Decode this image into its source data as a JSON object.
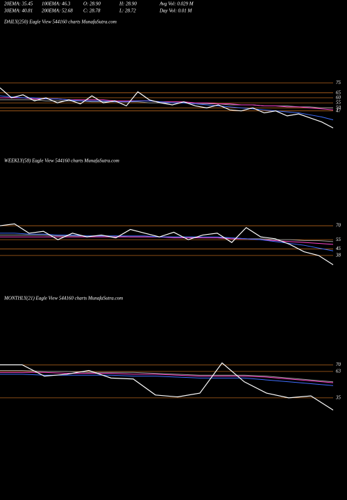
{
  "header": {
    "row1": [
      "20EMA: 35.45",
      "100EMA: 46.3",
      "O: 28.90",
      "H: 28.90",
      "Avg Vol: 0.029 M"
    ],
    "row2": [
      "30EMA: 40.81",
      "200EMA: 52.68",
      "C: 28.78",
      "L: 28.72",
      "Day Vol: 0.01 M"
    ]
  },
  "chart_data": [
    {
      "type": "line",
      "title": "DAILY(250) Eagle   View  544160  charts MunafaSutra.com",
      "ylim": [
        26,
        80
      ],
      "yticks": [
        75,
        65,
        60,
        55,
        50,
        47
      ],
      "series": [
        {
          "color": "#9a9a9a",
          "values": [
            58,
            58,
            58,
            58,
            57,
            57,
            57,
            57,
            56,
            56,
            56,
            56,
            56,
            55,
            55,
            55,
            55,
            54,
            54,
            54,
            53,
            53,
            53,
            52,
            52,
            52,
            51,
            51,
            50,
            50
          ]
        },
        {
          "color": "#ff44cc",
          "values": [
            60,
            60,
            60,
            59,
            59,
            59,
            58,
            58,
            58,
            58,
            57,
            57,
            57,
            57,
            56,
            56,
            56,
            55,
            55,
            54,
            54,
            53,
            53,
            52,
            52,
            51,
            51,
            50,
            49,
            48
          ]
        },
        {
          "color": "#3f6fff",
          "values": [
            62,
            61,
            60,
            60,
            59,
            59,
            58,
            57,
            57,
            57,
            56,
            56,
            57,
            57,
            56,
            55,
            55,
            54,
            53,
            52,
            51,
            50,
            49,
            48,
            47,
            46,
            45,
            43,
            41,
            38
          ]
        },
        {
          "color": "#ffffff",
          "values": [
            70,
            60,
            63,
            57,
            60,
            55,
            58,
            54,
            62,
            55,
            57,
            52,
            66,
            58,
            55,
            53,
            56,
            52,
            50,
            53,
            48,
            47,
            50,
            45,
            47,
            42,
            44,
            40,
            36,
            30
          ]
        }
      ]
    },
    {
      "type": "line",
      "title": "WEEKLY(58) Eagle  View  544160  charts MunafaSutra.com",
      "ylim": [
        20,
        85
      ],
      "yticks": [
        70,
        55,
        45,
        38
      ],
      "series": [
        {
          "color": "#9a9a9a",
          "values": [
            60,
            60,
            60,
            60,
            59,
            59,
            59,
            59,
            59,
            58,
            58,
            58,
            58,
            58,
            57,
            57,
            57,
            56,
            56,
            55,
            55,
            54,
            54,
            53
          ]
        },
        {
          "color": "#ff44cc",
          "values": [
            58,
            58,
            58,
            58,
            58,
            58,
            58,
            58,
            58,
            58,
            58,
            58,
            57,
            57,
            57,
            57,
            56,
            56,
            55,
            54,
            53,
            52,
            51,
            50
          ]
        },
        {
          "color": "#3f6fff",
          "values": [
            62,
            62,
            61,
            61,
            60,
            60,
            59,
            59,
            59,
            59,
            59,
            58,
            58,
            58,
            58,
            58,
            57,
            56,
            55,
            53,
            51,
            49,
            46,
            43
          ]
        },
        {
          "color": "#ffffff",
          "values": [
            70,
            72,
            62,
            64,
            55,
            62,
            58,
            60,
            57,
            66,
            62,
            58,
            63,
            55,
            60,
            62,
            52,
            68,
            58,
            56,
            50,
            42,
            38,
            28
          ]
        }
      ]
    },
    {
      "type": "line",
      "title": "MONTHLY(21) Eagle  View  544160  charts MunafaSutra.com",
      "ylim": [
        15,
        85
      ],
      "yticks": [
        70,
        63,
        35
      ],
      "series": [
        {
          "color": "#9a9a9a",
          "values": [
            64,
            64,
            63,
            63,
            62,
            62,
            62,
            61,
            60,
            59,
            59,
            59,
            58,
            56,
            54,
            52
          ]
        },
        {
          "color": "#ff44cc",
          "values": [
            62,
            62,
            62,
            61,
            61,
            61,
            60,
            60,
            59,
            58,
            58,
            58,
            57,
            55,
            53,
            51
          ]
        },
        {
          "color": "#3f6fff",
          "values": [
            60,
            60,
            59,
            59,
            59,
            59,
            58,
            58,
            57,
            56,
            56,
            56,
            54,
            52,
            50,
            48
          ]
        },
        {
          "color": "#ffffff",
          "values": [
            70,
            70,
            58,
            60,
            64,
            56,
            55,
            38,
            36,
            40,
            72,
            52,
            40,
            35,
            37,
            22
          ]
        }
      ]
    }
  ]
}
